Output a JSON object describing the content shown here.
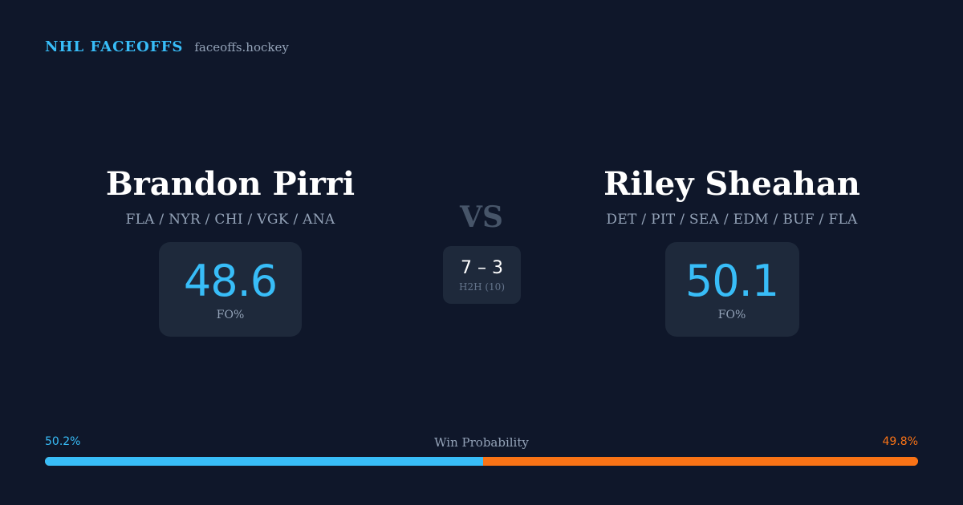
{
  "brand": {
    "title": "NHL FACEOFFS",
    "domain": "faceoffs.hockey"
  },
  "player_left": {
    "name": "Brandon Pirri",
    "teams": "FLA / NYR / CHI / VGK / ANA",
    "stat_value": "48.6",
    "stat_label": "FO%"
  },
  "player_right": {
    "name": "Riley Sheahan",
    "teams": "DET / PIT / SEA / EDM / BUF / FLA",
    "stat_value": "50.1",
    "stat_label": "FO%"
  },
  "versus": {
    "label": "VS",
    "h2h_score": "7 – 3",
    "h2h_label": "H2H (10)"
  },
  "win_probability": {
    "label": "Win Probability",
    "left_text": "50.2%",
    "right_text": "49.8%",
    "left_percent": 50.2,
    "right_percent": 49.8,
    "left_color": "#38bdf8",
    "right_color": "#f97316"
  }
}
